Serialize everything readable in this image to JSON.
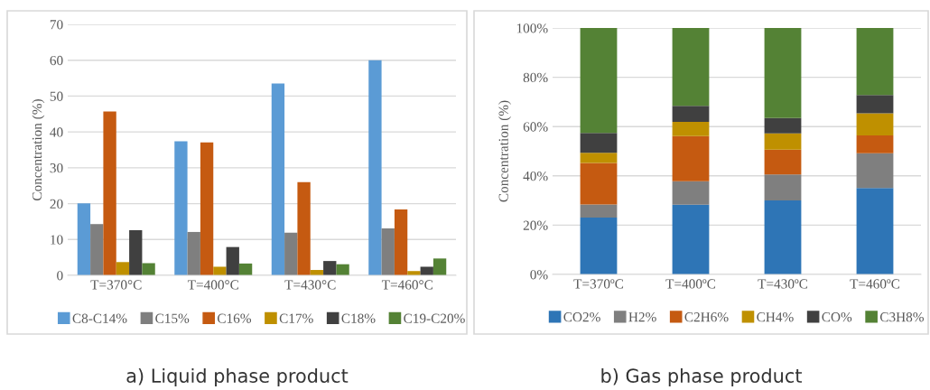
{
  "chart_data": [
    {
      "type": "bar",
      "title": "a) Liquid phase product",
      "ylabel": "Concentration (%)",
      "categories": [
        "T=370°C",
        "T=400°C",
        "T=430°C",
        "T=460°C"
      ],
      "series": [
        {
          "name": "C8-C14%",
          "color": "#5b9bd5",
          "values": [
            20.1,
            37.4,
            53.5,
            60.0
          ]
        },
        {
          "name": "C15%",
          "color": "#7f7f7f",
          "values": [
            14.3,
            12.1,
            11.9,
            13.1
          ]
        },
        {
          "name": "C16%",
          "color": "#c55a11",
          "values": [
            45.7,
            37.1,
            26.0,
            18.4
          ]
        },
        {
          "name": "C17%",
          "color": "#bf9000",
          "values": [
            3.7,
            2.4,
            1.5,
            1.2
          ]
        },
        {
          "name": "C18%",
          "color": "#404040",
          "values": [
            12.6,
            7.9,
            4.0,
            2.4
          ]
        },
        {
          "name": "C19-C20%",
          "color": "#548235",
          "values": [
            3.4,
            3.3,
            3.1,
            4.7
          ]
        }
      ],
      "ylim": [
        0,
        70
      ],
      "yticks": [
        0,
        10,
        20,
        30,
        40,
        50,
        60,
        70
      ],
      "grid": "y",
      "legend": "bottom"
    },
    {
      "type": "bar",
      "stacked": true,
      "title": "b) Gas phase product",
      "ylabel": "Concentration (%)",
      "categories": [
        "T=370ºC",
        "T=400ºC",
        "T=430ºC",
        "T=460ºC"
      ],
      "series": [
        {
          "name": "CO2%",
          "color": "#2e75b6",
          "values": [
            23.1,
            28.3,
            30.0,
            35.1
          ]
        },
        {
          "name": "H2%",
          "color": "#7f7f7f",
          "values": [
            5.3,
            9.5,
            10.6,
            14.1
          ]
        },
        {
          "name": "C2H6%",
          "color": "#c55a11",
          "values": [
            16.8,
            18.3,
            10.0,
            7.2
          ]
        },
        {
          "name": "CH4%",
          "color": "#bf9000",
          "values": [
            4.2,
            5.8,
            6.6,
            9.0
          ]
        },
        {
          "name": "CO%",
          "color": "#404040",
          "values": [
            8.0,
            6.5,
            6.3,
            7.4
          ]
        },
        {
          "name": "C3H8%",
          "color": "#548235",
          "values": [
            42.6,
            31.6,
            36.5,
            27.2
          ]
        }
      ],
      "ylim": [
        0,
        100
      ],
      "yticks": [
        {
          "value": 0,
          "label": "0%"
        },
        {
          "value": 20,
          "label": "20%"
        },
        {
          "value": 40,
          "label": "40%"
        },
        {
          "value": 60,
          "label": "60%"
        },
        {
          "value": 80,
          "label": "80%"
        },
        {
          "value": 100,
          "label": "100%"
        }
      ],
      "grid": "y",
      "legend": "bottom"
    }
  ]
}
